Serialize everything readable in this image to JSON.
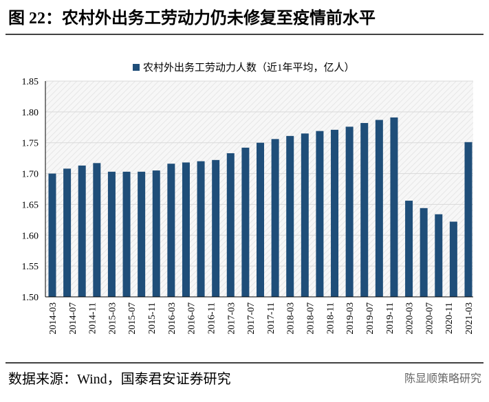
{
  "title": "图 22：农村外出务工劳动力仍未修复至疫情前水平",
  "source": "数据来源：Wind，国泰君安证券研究",
  "watermark": "陈显顺策略研究",
  "chart_data": {
    "type": "bar",
    "series": [
      {
        "name": "农村外出务工劳动力人数（近1年平均，亿人）",
        "color": "#1f4e79",
        "values": [
          1.7,
          1.708,
          1.713,
          1.717,
          1.703,
          1.703,
          1.703,
          1.705,
          1.716,
          1.718,
          1.72,
          1.722,
          1.733,
          1.742,
          1.75,
          1.756,
          1.761,
          1.765,
          1.769,
          1.771,
          1.776,
          1.782,
          1.787,
          1.791,
          1.656,
          1.644,
          1.634,
          1.622,
          1.751
        ]
      }
    ],
    "xticks": [
      "2014-03",
      "2014-07",
      "2014-11",
      "2015-03",
      "2015-07",
      "2015-11",
      "2016-03",
      "2016-07",
      "2016-11",
      "2017-03",
      "2017-07",
      "2017-11",
      "2018-03",
      "2018-07",
      "2018-11",
      "2019-03",
      "2019-07",
      "2019-11",
      "2020-03",
      "2020-07",
      "2020-11",
      "2021-03"
    ],
    "ylim": [
      1.5,
      1.85
    ],
    "yticks": [
      {
        "value": 1.5,
        "label": "1.50"
      },
      {
        "value": 1.55,
        "label": "1.55"
      },
      {
        "value": 1.6,
        "label": "1.60"
      },
      {
        "value": 1.65,
        "label": "1.65"
      },
      {
        "value": 1.7,
        "label": "1.70"
      },
      {
        "value": 1.75,
        "label": "1.75"
      },
      {
        "value": 1.8,
        "label": "1.80"
      },
      {
        "value": 1.85,
        "label": "1.85"
      }
    ],
    "grid": true
  }
}
